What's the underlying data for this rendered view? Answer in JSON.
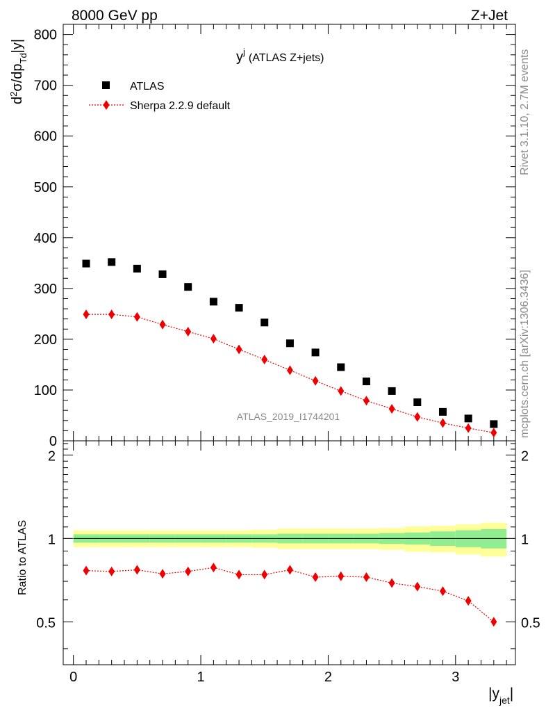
{
  "header": {
    "left": "8000 GeV pp",
    "right": "Z+Jet"
  },
  "side_labels": {
    "rivet": "Rivet 3.1.10,  2.7M events",
    "mcplots": "mcplots.cern.ch [arXiv:1306.3436]"
  },
  "chart_data": [
    {
      "type": "scatter",
      "title": "y",
      "title_superscript": "j",
      "title_suffix": "(ATLAS Z+jets)",
      "ylabel": "d²σ/dp_Td|y|",
      "watermark": "ATLAS_2019_I1744201",
      "xlim": [
        -0.08,
        3.47
      ],
      "ylim": [
        0,
        820
      ],
      "ytick_values": [
        0,
        100,
        200,
        300,
        400,
        500,
        600,
        700,
        800
      ],
      "yticks": [
        "0",
        "100",
        "200",
        "300",
        "400",
        "500",
        "600",
        "700",
        "800"
      ],
      "legend_position": "top-left",
      "x": [
        0.1,
        0.3,
        0.5,
        0.7,
        0.9,
        1.1,
        1.3,
        1.5,
        1.7,
        1.9,
        2.1,
        2.3,
        2.5,
        2.7,
        2.9,
        3.1,
        3.3
      ],
      "series": [
        {
          "name": "ATLAS",
          "color": "#000000",
          "marker": "square",
          "values": [
            349,
            352,
            339,
            328,
            303,
            274,
            262,
            233,
            192,
            174,
            145,
            117,
            98,
            76,
            57,
            44,
            33
          ]
        },
        {
          "name": "Sherpa 2.2.9 default",
          "color": "#ee0000",
          "marker": "diamond",
          "line": "dotted",
          "values": [
            249,
            249,
            244,
            229,
            215,
            201,
            180,
            160,
            139,
            118,
            98,
            79,
            63,
            47,
            35,
            25,
            16
          ]
        }
      ]
    },
    {
      "type": "line",
      "ylabel": "Ratio to ATLAS",
      "xlabel": "|y_jet|",
      "xlim": [
        -0.08,
        3.47
      ],
      "ylim": [
        0.35,
        2.25
      ],
      "ytick_values": [
        0.5,
        1,
        2
      ],
      "yticks": [
        "0.5",
        "1",
        "2"
      ],
      "xtick_values": [
        0,
        1,
        2,
        3
      ],
      "xticks": [
        "0",
        "1",
        "2",
        "3"
      ],
      "reference_line": 1,
      "bands": {
        "x_edges": [
          0.0,
          0.2,
          0.4,
          0.6,
          0.8,
          1.0,
          1.2,
          1.4,
          1.6,
          1.8,
          2.0,
          2.2,
          2.4,
          2.6,
          2.8,
          3.0,
          3.2,
          3.4
        ],
        "yellow_color": "#ffff99",
        "green_color": "#90ee90",
        "yellow_half_width": [
          0.07,
          0.07,
          0.07,
          0.07,
          0.07,
          0.07,
          0.07,
          0.075,
          0.085,
          0.085,
          0.085,
          0.085,
          0.09,
          0.105,
          0.11,
          0.125,
          0.14
        ],
        "green_half_width": [
          0.035,
          0.035,
          0.035,
          0.035,
          0.035,
          0.035,
          0.035,
          0.035,
          0.04,
          0.04,
          0.04,
          0.04,
          0.045,
          0.05,
          0.06,
          0.07,
          0.08
        ]
      },
      "x": [
        0.1,
        0.3,
        0.5,
        0.7,
        0.9,
        1.1,
        1.3,
        1.5,
        1.7,
        1.9,
        2.1,
        2.3,
        2.5,
        2.7,
        2.9,
        3.1,
        3.3
      ],
      "series": [
        {
          "name": "Sherpa 2.2.9 default",
          "color": "#ee0000",
          "marker": "diamond",
          "line": "dotted",
          "values": [
            0.765,
            0.76,
            0.77,
            0.745,
            0.76,
            0.785,
            0.74,
            0.74,
            0.77,
            0.725,
            0.73,
            0.725,
            0.69,
            0.67,
            0.645,
            0.595,
            0.5
          ]
        }
      ]
    }
  ]
}
